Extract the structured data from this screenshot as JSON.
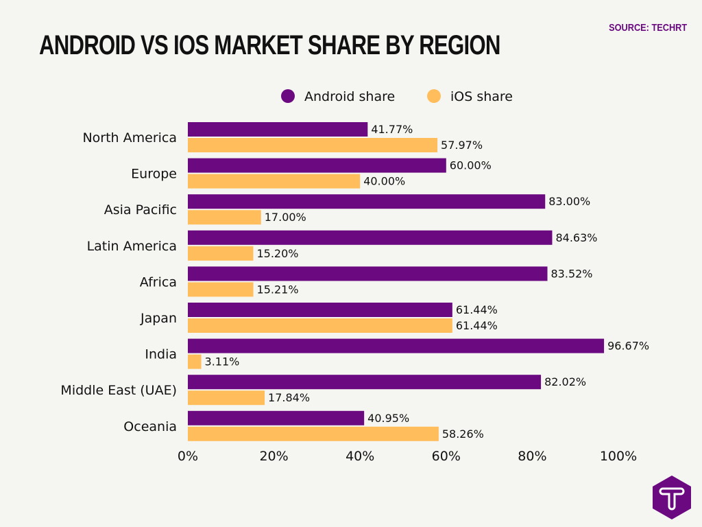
{
  "title": "ANDROID VS IOS MARKET SHARE BY REGION",
  "source": "SOURCE: TECHRT",
  "logo_icon": "techrt-t-logo-icon",
  "colors": {
    "android": "#6b0a80",
    "ios": "#ffbd5c",
    "background": "#f5f5f1"
  },
  "chart_data": {
    "type": "bar",
    "orientation": "horizontal",
    "categories": [
      "North America",
      "Europe",
      "Asia Pacific",
      "Latin America",
      "Africa",
      "Japan",
      "India",
      "Middle East (UAE)",
      "Oceania"
    ],
    "series": [
      {
        "name": "Android share",
        "values": [
          41.77,
          60.0,
          83.0,
          84.63,
          83.52,
          61.44,
          96.67,
          82.02,
          40.95
        ],
        "labels": [
          "41.77%",
          "60.00%",
          "83.00%",
          "84.63%",
          "83.52%",
          "61.44%",
          "96.67%",
          "82.02%",
          "40.95%"
        ]
      },
      {
        "name": "iOS share",
        "values": [
          57.97,
          40.0,
          17.0,
          15.2,
          15.21,
          61.44,
          3.11,
          17.84,
          58.26
        ],
        "labels": [
          "57.97%",
          "40.00%",
          "17.00%",
          "15.20%",
          "15.21%",
          "61.44%",
          "3.11%",
          "17.84%",
          "58.26%"
        ]
      }
    ],
    "xlim": [
      0,
      100
    ],
    "xticks": [
      "0%",
      "20%",
      "40%",
      "60%",
      "80%",
      "100%"
    ],
    "legend": "top",
    "grid": false
  }
}
